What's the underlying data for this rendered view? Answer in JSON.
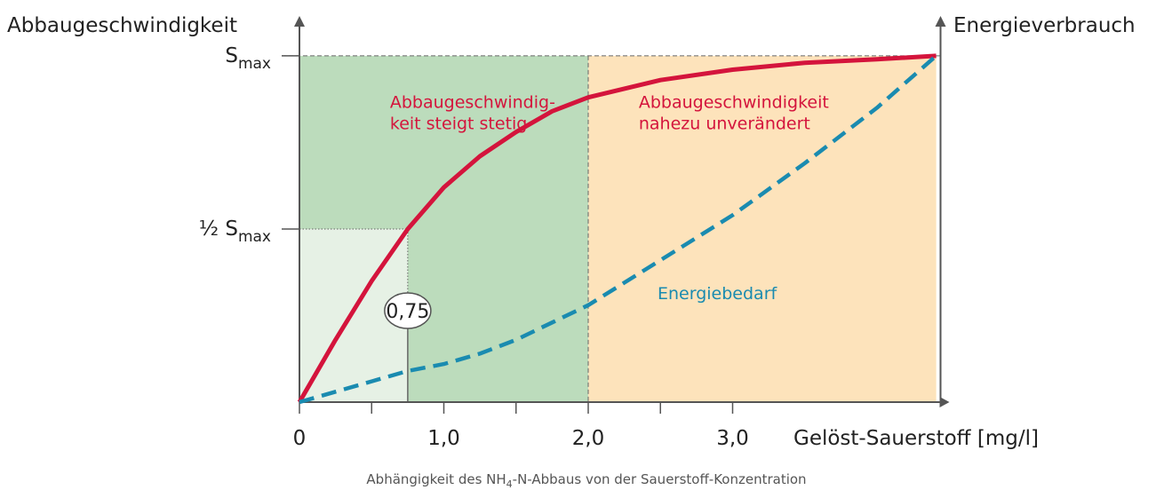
{
  "chart_data": {
    "type": "line",
    "y_axis_label": "Abbaugeschwindigkeit",
    "y2_axis_label": "Energieverbrauch",
    "x_axis_label": "Gelöst-Sauerstoff [mg/l]",
    "caption": [
      "Abhängigkeit des NH",
      "4",
      "-N-Abbaus von der Sauerstoff-Konzentration"
    ],
    "xlim": [
      0,
      4.44
    ],
    "ylim": [
      0,
      1.11
    ],
    "xticks": [
      0,
      {
        "value": 1,
        "label": "1,0"
      },
      {
        "value": 2,
        "label": "2,0"
      },
      {
        "value": 3,
        "label": "3,0"
      }
    ],
    "xminor_ticks": [
      0.5,
      1.5,
      2.5
    ],
    "yticks": [
      {
        "value": 0.5,
        "label": [
          "½ S",
          "max"
        ]
      },
      {
        "value": 1,
        "label": [
          "S",
          "max"
        ]
      }
    ],
    "regions": [
      {
        "from": 0,
        "to": 2,
        "color": "#bcdcbc"
      },
      {
        "from": 2,
        "to": 4.41,
        "color": "#fde3bb"
      }
    ],
    "half_point": {
      "x": 0.75,
      "label": "0,75",
      "color": "#e6f1e5"
    },
    "x": [
      0,
      0.25,
      0.5,
      0.75,
      1.0,
      1.25,
      1.5,
      1.75,
      2.0,
      2.5,
      3.0,
      3.5,
      4.0,
      4.41
    ],
    "series": [
      {
        "color": "#d4143c",
        "dashed": false,
        "values": [
          0,
          0.18,
          0.35,
          0.5,
          0.62,
          0.71,
          0.78,
          0.84,
          0.88,
          0.93,
          0.96,
          0.98,
          0.99,
          1.0
        ]
      },
      {
        "name": "Energiebedarf",
        "color": "#1a8bb0",
        "dashed": true,
        "values": [
          0,
          0.03,
          0.06,
          0.09,
          0.11,
          0.14,
          0.18,
          0.23,
          0.28,
          0.41,
          0.54,
          0.69,
          0.85,
          1.0
        ]
      }
    ],
    "annotations": [
      {
        "x": 1.55,
        "y": 0.87,
        "lines": [
          "Abbaugeschwindig-",
          "keit steigt stetig"
        ],
        "color": "#d4143c"
      },
      {
        "x": 2.35,
        "y": 0.87,
        "lines": [
          "Abbaugeschwindigkeit",
          "nahezu unverändert"
        ],
        "color": "#d4143c"
      }
    ]
  }
}
